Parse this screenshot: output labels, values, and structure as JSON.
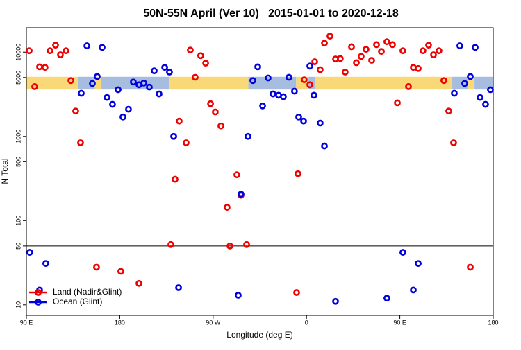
{
  "chart_data": {
    "type": "scatter",
    "title": "50N-55N April (Ver 10)   2015-01-01 to 2020-12-18",
    "x_label": "Longitude (deg E)",
    "y_label": "N Total",
    "xlim": [
      90,
      540
    ],
    "xticks": [
      {
        "value": 90,
        "label": "90 E"
      },
      {
        "value": 180,
        "label": "180"
      },
      {
        "value": 270,
        "label": "90 W"
      },
      {
        "value": 360,
        "label": "0"
      },
      {
        "value": 450,
        "label": "90 E"
      },
      {
        "value": 540,
        "label": "180"
      }
    ],
    "ylim": [
      7.5,
      19500
    ],
    "log_y": true,
    "yticks": [
      10,
      50,
      100,
      500,
      1000,
      5000,
      10000
    ],
    "hline": 50,
    "legend": "bottom-left",
    "band": {
      "range": [
        3600,
        5100
      ],
      "segments": [
        {
          "from": 90,
          "to": 140,
          "color": "#f9d877"
        },
        {
          "from": 140,
          "to": 156,
          "color": "#a7bde0"
        },
        {
          "from": 156,
          "to": 162,
          "color": "#f9d877"
        },
        {
          "from": 162,
          "to": 228,
          "color": "#a7bde0"
        },
        {
          "from": 228,
          "to": 304,
          "color": "#f9d877"
        },
        {
          "from": 304,
          "to": 350,
          "color": "#a7bde0"
        },
        {
          "from": 350,
          "to": 362,
          "color": "#f9d877"
        },
        {
          "from": 362,
          "to": 368,
          "color": "#a7bde0"
        },
        {
          "from": 368,
          "to": 500,
          "color": "#f9d877"
        },
        {
          "from": 500,
          "to": 516,
          "color": "#a7bde0"
        },
        {
          "from": 516,
          "to": 522,
          "color": "#f9d877"
        },
        {
          "from": 522,
          "to": 540,
          "color": "#a7bde0"
        }
      ]
    },
    "series": [
      {
        "name": "Land (Nadir&Glint)",
        "color": "#ee0000",
        "x": [
          92.7,
          98.0,
          102.7,
          108.0,
          112.8,
          118.1,
          122.8,
          128.2,
          132.9,
          137.5,
          142.2,
          157.6,
          181.0,
          198.5,
          229.3,
          233.3,
          237.3,
          244.0,
          248.0,
          252.7,
          258.0,
          262.8,
          267.5,
          272.1,
          277.5,
          283.5,
          286.2,
          292.9,
          296.9,
          302.3,
          350.5,
          351.8,
          357.8,
          363.2,
          367.9,
          373.2,
          377.3,
          382.6,
          388.0,
          392.6,
          397.3,
          403.4,
          408.1,
          412.7,
          417.4,
          422.8,
          427.5,
          432.2,
          437.5,
          442.9,
          447.6,
          452.9,
          458.3,
          463.0,
          467.7,
          472.3,
          477.7,
          482.4,
          487.7,
          492.4,
          497.1,
          501.8,
          517.9
        ],
        "values": [
          10400,
          3900,
          6700,
          6600,
          10400,
          12100,
          9300,
          10400,
          4600,
          2000,
          840,
          28,
          25,
          18,
          52,
          310,
          1520,
          840,
          10600,
          5030,
          9100,
          7400,
          2440,
          1950,
          1330,
          144,
          50,
          350,
          200,
          52,
          14,
          360,
          4700,
          4100,
          7700,
          6200,
          12800,
          15500,
          8300,
          8400,
          5800,
          11600,
          7500,
          8900,
          10800,
          8000,
          12300,
          10200,
          13300,
          12300,
          2500,
          10400,
          3900,
          6600,
          6400,
          10400,
          12100,
          9300,
          10400,
          4600,
          2000,
          840,
          28
        ]
      },
      {
        "name": "Ocean (Glint)",
        "color": "#0000dd",
        "x": [
          93.3,
          102.7,
          108.7,
          142.9,
          148.3,
          153.6,
          158.3,
          163.0,
          167.7,
          173.0,
          178.4,
          183.1,
          188.4,
          193.1,
          198.5,
          203.2,
          208.5,
          213.2,
          217.9,
          223.3,
          227.9,
          232.0,
          236.7,
          294.2,
          296.9,
          303.6,
          308.3,
          313.0,
          317.7,
          323.0,
          327.7,
          333.1,
          337.7,
          343.1,
          348.4,
          352.5,
          357.2,
          363.2,
          367.2,
          373.2,
          377.3,
          388.0,
          437.5,
          452.9,
          463.0,
          467.7,
          502.5,
          507.8,
          512.5,
          517.9,
          522.6,
          527.3,
          532.6,
          537.3
        ],
        "values": [
          42,
          15,
          31,
          3250,
          11900,
          4250,
          5140,
          11400,
          2900,
          2400,
          3580,
          1700,
          2100,
          4420,
          4100,
          4300,
          3850,
          6000,
          3190,
          6600,
          5800,
          1000,
          16,
          13,
          206,
          1000,
          4600,
          6700,
          2300,
          4940,
          3190,
          3080,
          2960,
          5030,
          3440,
          1700,
          1520,
          6840,
          3080,
          1440,
          770,
          11,
          12,
          42,
          15,
          31,
          3250,
          11900,
          4250,
          5140,
          11400,
          2900,
          2400,
          3580
        ]
      }
    ]
  }
}
